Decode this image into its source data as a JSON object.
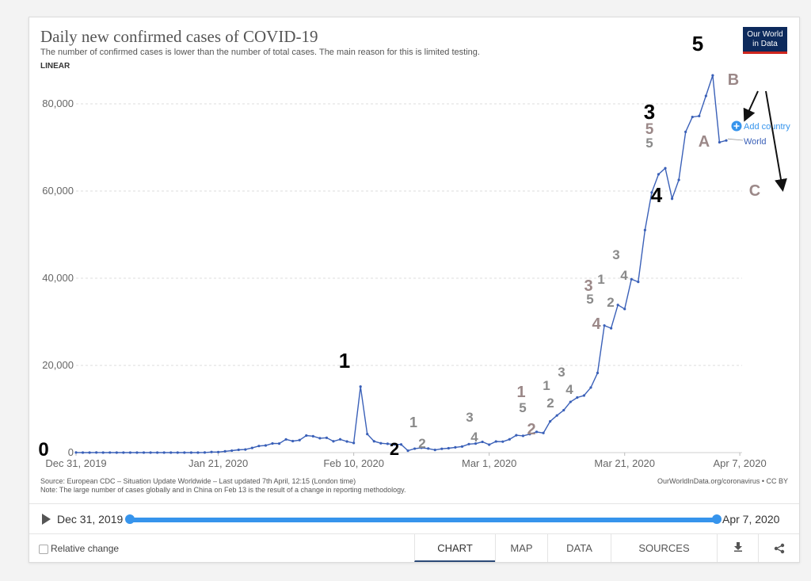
{
  "header": {
    "title": "Daily new confirmed cases of COVID-19",
    "subtitle": "The number of confirmed cases is lower than the number of total cases. The main reason for this is limited testing.",
    "scale_label": "LINEAR",
    "logo_line1": "Our World",
    "logo_line2": "in Data"
  },
  "footer": {
    "source": "Source: European CDC – Situation Update Worldwide – Last updated 7th April, 12:15 (London time)",
    "note": "Note: The large number of cases globally and in China on Feb 13 is the result of a change in reporting methodology.",
    "credit": "OurWorldInData.org/coronavirus • CC BY"
  },
  "timeline": {
    "start": "Dec 31, 2019",
    "end": "Apr 7, 2020"
  },
  "controls": {
    "relative_change": "Relative change",
    "tabs": [
      "CHART",
      "MAP",
      "DATA",
      "SOURCES"
    ],
    "active_tab": "CHART"
  },
  "colors": {
    "line": "#3a60b8",
    "accent": "#3694ec",
    "annotation_dark": "#000000",
    "annotation_muted": "#9b8888",
    "annotation_light": "#8a8a8a"
  },
  "chart_data": {
    "type": "line",
    "title": "Daily new confirmed cases of COVID-19",
    "ylim": [
      0,
      90000
    ],
    "yticks": [
      0,
      20000,
      40000,
      60000,
      80000
    ],
    "ytick_labels": [
      "0",
      "20,000",
      "40,000",
      "60,000",
      "80,000"
    ],
    "xtick_labels": [
      "Dec 31, 2019",
      "Jan 21, 2020",
      "Feb 10, 2020",
      "Mar 1, 2020",
      "Mar 21, 2020",
      "Apr 7, 2020"
    ],
    "xtick_days": [
      0,
      21,
      41,
      61,
      81,
      98
    ],
    "grid": true,
    "legend_button": "Add country",
    "series": [
      {
        "name": "World",
        "values": [
          27,
          0,
          0,
          17,
          0,
          15,
          0,
          0,
          0,
          0,
          0,
          0,
          0,
          1,
          1,
          2,
          1,
          3,
          4,
          17,
          135,
          125,
          292,
          447,
          631,
          705,
          1072,
          1513,
          1637,
          2092,
          2064,
          3034,
          2643,
          2861,
          3904,
          3756,
          3289,
          3395,
          2585,
          3042,
          2542,
          2203,
          15133,
          4260,
          2596,
          2140,
          2016,
          1873,
          1864,
          432,
          900,
          1118,
          935,
          607,
          871,
          998,
          1209,
          1394,
          1945,
          2062,
          2464,
          1816,
          2540,
          2515,
          3039,
          3982,
          3844,
          4238,
          4748,
          4500,
          7165,
          8512,
          9732,
          11629,
          12637,
          13094,
          14922,
          18266,
          29149,
          28526,
          33871,
          32942,
          39781,
          39155,
          51050,
          59653,
          63836,
          65231,
          58248,
          62545,
          73564,
          76985,
          77200,
          81820,
          86522,
          71183,
          71600
        ]
      }
    ],
    "annotations": [
      {
        "text": "0",
        "tone": "dark"
      },
      {
        "text": "1",
        "tone": "dark"
      },
      {
        "text": "2",
        "tone": "dark"
      },
      {
        "text": "1",
        "tone": "light"
      },
      {
        "text": "2",
        "tone": "light"
      },
      {
        "text": "3",
        "tone": "light"
      },
      {
        "text": "4",
        "tone": "light"
      },
      {
        "text": "1",
        "tone": "muted"
      },
      {
        "text": "5",
        "tone": "light"
      },
      {
        "text": "2",
        "tone": "muted"
      },
      {
        "text": "1",
        "tone": "light"
      },
      {
        "text": "2",
        "tone": "light"
      },
      {
        "text": "3",
        "tone": "light"
      },
      {
        "text": "4",
        "tone": "light"
      },
      {
        "text": "3",
        "tone": "muted"
      },
      {
        "text": "5",
        "tone": "light"
      },
      {
        "text": "4",
        "tone": "muted"
      },
      {
        "text": "1",
        "tone": "light"
      },
      {
        "text": "2",
        "tone": "light"
      },
      {
        "text": "3",
        "tone": "light"
      },
      {
        "text": "4",
        "tone": "light"
      },
      {
        "text": "3",
        "tone": "dark"
      },
      {
        "text": "5",
        "tone": "muted"
      },
      {
        "text": "5",
        "tone": "light"
      },
      {
        "text": "4",
        "tone": "dark"
      },
      {
        "text": "5",
        "tone": "dark"
      },
      {
        "text": "A",
        "tone": "muted"
      },
      {
        "text": "B",
        "tone": "muted"
      },
      {
        "text": "C",
        "tone": "muted"
      }
    ]
  }
}
